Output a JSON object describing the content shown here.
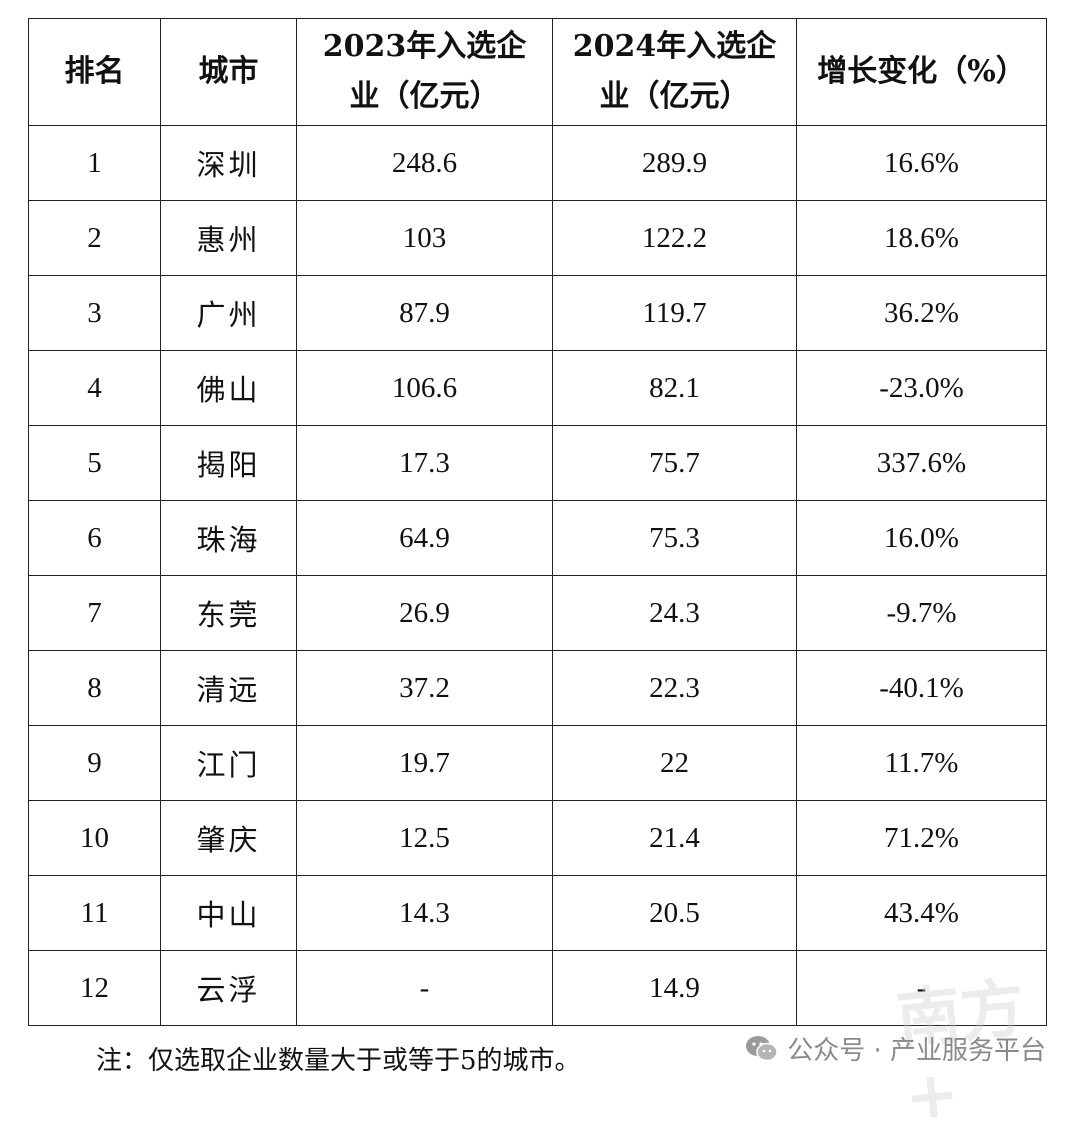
{
  "table": {
    "headers": {
      "rank": "排名",
      "city": "城市",
      "y2023_line1": "2023年入选企",
      "y2023_line2": "业（亿元）",
      "y2024_line1": "2024年入选企",
      "y2024_line2": "业（亿元）",
      "change": "增长变化（%）"
    },
    "rows": [
      {
        "rank": "1",
        "city": "深圳",
        "y2023": "248.6",
        "y2024": "289.9",
        "change": "16.6%"
      },
      {
        "rank": "2",
        "city": "惠州",
        "y2023": "103",
        "y2024": "122.2",
        "change": "18.6%"
      },
      {
        "rank": "3",
        "city": "广州",
        "y2023": "87.9",
        "y2024": "119.7",
        "change": "36.2%"
      },
      {
        "rank": "4",
        "city": "佛山",
        "y2023": "106.6",
        "y2024": "82.1",
        "change": "-23.0%"
      },
      {
        "rank": "5",
        "city": "揭阳",
        "y2023": "17.3",
        "y2024": "75.7",
        "change": "337.6%"
      },
      {
        "rank": "6",
        "city": "珠海",
        "y2023": "64.9",
        "y2024": "75.3",
        "change": "16.0%"
      },
      {
        "rank": "7",
        "city": "东莞",
        "y2023": "26.9",
        "y2024": "24.3",
        "change": "-9.7%"
      },
      {
        "rank": "8",
        "city": "清远",
        "y2023": "37.2",
        "y2024": "22.3",
        "change": "-40.1%"
      },
      {
        "rank": "9",
        "city": "江门",
        "y2023": "19.7",
        "y2024": "22",
        "change": "11.7%"
      },
      {
        "rank": "10",
        "city": "肇庆",
        "y2023": "12.5",
        "y2024": "21.4",
        "change": "71.2%"
      },
      {
        "rank": "11",
        "city": "中山",
        "y2023": "14.3",
        "y2024": "20.5",
        "change": "43.4%"
      },
      {
        "rank": "12",
        "city": "云浮",
        "y2023": "-",
        "y2024": "14.9",
        "change": "-"
      }
    ]
  },
  "note": "注：仅选取企业数量大于或等于5的城市。",
  "watermark": {
    "icon": "wechat-icon",
    "text": "公众号 · 产业服务平台"
  },
  "faint_logo": "南方+"
}
